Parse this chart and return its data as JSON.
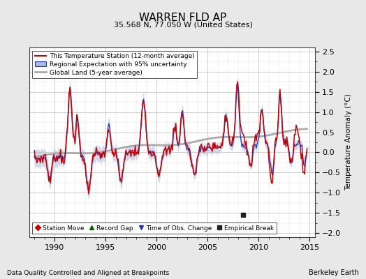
{
  "title": "WARREN FLD AP",
  "subtitle": "35.568 N, 77.050 W (United States)",
  "ylabel": "Temperature Anomaly (°C)",
  "xlabel_left": "Data Quality Controlled and Aligned at Breakpoints",
  "xlabel_right": "Berkeley Earth",
  "xlim": [
    1987.5,
    2015.5
  ],
  "ylim": [
    -2.1,
    2.6
  ],
  "yticks": [
    -2,
    -1.5,
    -1,
    -0.5,
    0,
    0.5,
    1,
    1.5,
    2,
    2.5
  ],
  "xticks": [
    1990,
    1995,
    2000,
    2005,
    2010,
    2015
  ],
  "bg_color": "#e8e8e8",
  "plot_bg_color": "#ffffff",
  "red_color": "#cc0000",
  "blue_color": "#2233bb",
  "blue_fill_color": "#aabbdd",
  "gray_color": "#aaaaaa",
  "legend_items": [
    {
      "label": "This Temperature Station (12-month average)",
      "color": "#cc0000",
      "lw": 1.5
    },
    {
      "label": "Regional Expectation with 95% uncertainty",
      "color": "#2233bb",
      "lw": 1.5
    },
    {
      "label": "Global Land (5-year average)",
      "color": "#aaaaaa",
      "lw": 2.0
    }
  ],
  "bottom_legend": [
    {
      "marker": "D",
      "color": "#cc0000",
      "label": "Station Move"
    },
    {
      "marker": "^",
      "color": "#006600",
      "label": "Record Gap"
    },
    {
      "marker": "v",
      "color": "#2233bb",
      "label": "Time of Obs. Change"
    },
    {
      "marker": "s",
      "color": "#222222",
      "label": "Empirical Break"
    }
  ],
  "empirical_break_x": 2008.5,
  "empirical_break_y": -1.55
}
